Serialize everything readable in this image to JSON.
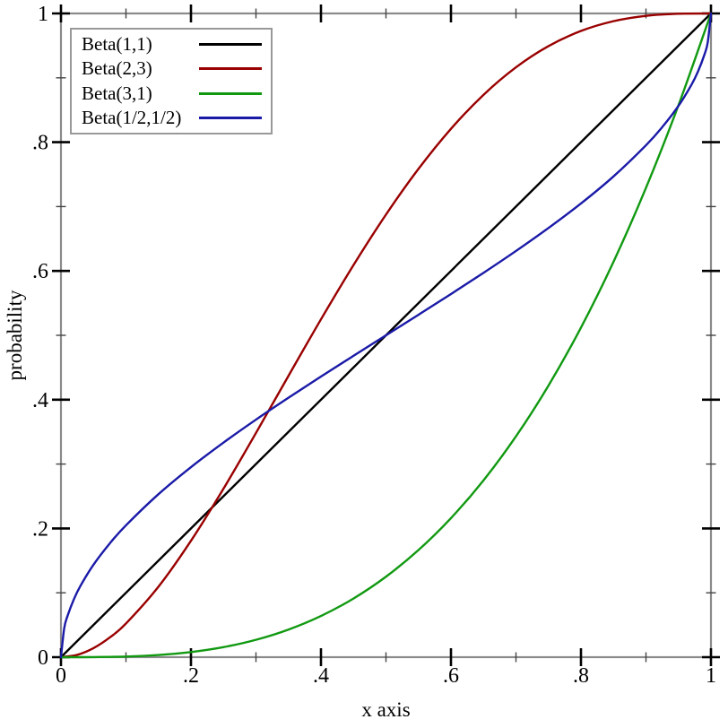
{
  "chart_data": {
    "type": "line",
    "title": "",
    "xlabel": "x axis",
    "ylabel": "probability",
    "xlim": [
      0,
      1
    ],
    "ylim": [
      0,
      1
    ],
    "grid": false,
    "legend_position": "top-left",
    "background_color": "#ffffff",
    "frame_color": "#8a8a8a",
    "major_tick_color": "#000000",
    "minor_tick_color": "#444444",
    "x_ticks": {
      "major": [
        0,
        0.2,
        0.4,
        0.6,
        0.8,
        1
      ],
      "minor": [
        0.1,
        0.3,
        0.5,
        0.7,
        0.9
      ],
      "labels": [
        "0",
        ".2",
        ".4",
        ".6",
        ".8",
        "1"
      ]
    },
    "y_ticks": {
      "major": [
        0,
        0.2,
        0.4,
        0.6,
        0.8,
        1
      ],
      "minor": [
        0.1,
        0.3,
        0.5,
        0.7,
        0.9
      ],
      "labels": [
        "0",
        ".2",
        ".4",
        ".6",
        ".8",
        "1"
      ]
    },
    "series": [
      {
        "name": "Beta(1,1)",
        "color": "#000000",
        "points": [
          [
            0,
            0
          ],
          [
            0.25,
            0.25
          ],
          [
            0.5,
            0.5
          ],
          [
            0.75,
            0.75
          ],
          [
            1,
            1
          ]
        ]
      },
      {
        "name": "Beta(2,3)",
        "color": "#990000",
        "points": [
          [
            0,
            0
          ],
          [
            0.025,
            0.0036
          ],
          [
            0.05,
            0.014
          ],
          [
            0.075,
            0.0305
          ],
          [
            0.1,
            0.0523
          ],
          [
            0.15,
            0.1095
          ],
          [
            0.2,
            0.1808
          ],
          [
            0.25,
            0.2617
          ],
          [
            0.3,
            0.3483
          ],
          [
            0.35,
            0.437
          ],
          [
            0.4,
            0.5248
          ],
          [
            0.45,
            0.609
          ],
          [
            0.5,
            0.6875
          ],
          [
            0.55,
            0.7585
          ],
          [
            0.6,
            0.8208
          ],
          [
            0.65,
            0.8735
          ],
          [
            0.7,
            0.9163
          ],
          [
            0.75,
            0.9492
          ],
          [
            0.8,
            0.9728
          ],
          [
            0.85,
            0.988
          ],
          [
            0.9,
            0.9963
          ],
          [
            0.95,
            0.9995
          ],
          [
            1,
            1
          ]
        ]
      },
      {
        "name": "Beta(3,1)",
        "color": "#119911",
        "points": [
          [
            0,
            0
          ],
          [
            0.05,
            0.0001
          ],
          [
            0.1,
            0.001
          ],
          [
            0.15,
            0.0034
          ],
          [
            0.2,
            0.008
          ],
          [
            0.25,
            0.0156
          ],
          [
            0.3,
            0.027
          ],
          [
            0.35,
            0.0429
          ],
          [
            0.4,
            0.064
          ],
          [
            0.45,
            0.0911
          ],
          [
            0.5,
            0.125
          ],
          [
            0.55,
            0.1664
          ],
          [
            0.6,
            0.216
          ],
          [
            0.65,
            0.2746
          ],
          [
            0.7,
            0.343
          ],
          [
            0.75,
            0.4219
          ],
          [
            0.8,
            0.512
          ],
          [
            0.85,
            0.6141
          ],
          [
            0.9,
            0.729
          ],
          [
            0.95,
            0.8574
          ],
          [
            1,
            1
          ]
        ]
      },
      {
        "name": "Beta(1/2,1/2)",
        "color": "#1a1aa8",
        "points": [
          [
            0,
            0
          ],
          [
            0.005,
            0.045
          ],
          [
            0.01,
            0.0638
          ],
          [
            0.02,
            0.0903
          ],
          [
            0.03,
            0.1108
          ],
          [
            0.05,
            0.1436
          ],
          [
            0.075,
            0.1766
          ],
          [
            0.1,
            0.2048
          ],
          [
            0.15,
            0.2532
          ],
          [
            0.2,
            0.2952
          ],
          [
            0.25,
            0.3333
          ],
          [
            0.3,
            0.369
          ],
          [
            0.35,
            0.403
          ],
          [
            0.4,
            0.4359
          ],
          [
            0.45,
            0.4681
          ],
          [
            0.5,
            0.5
          ],
          [
            0.55,
            0.5319
          ],
          [
            0.6,
            0.5641
          ],
          [
            0.65,
            0.597
          ],
          [
            0.7,
            0.631
          ],
          [
            0.75,
            0.6667
          ],
          [
            0.8,
            0.7048
          ],
          [
            0.85,
            0.7468
          ],
          [
            0.9,
            0.7952
          ],
          [
            0.925,
            0.8234
          ],
          [
            0.95,
            0.8564
          ],
          [
            0.97,
            0.8892
          ],
          [
            0.98,
            0.9097
          ],
          [
            0.99,
            0.9362
          ],
          [
            0.995,
            0.955
          ],
          [
            1,
            1
          ]
        ]
      }
    ]
  }
}
